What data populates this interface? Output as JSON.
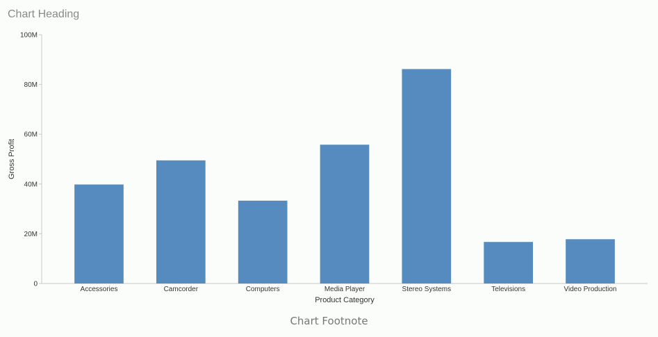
{
  "chart": {
    "heading": "Chart Heading",
    "footnote": "Chart Footnote"
  },
  "chart_data": {
    "type": "bar",
    "title": "Chart Heading",
    "xlabel": "Product Category",
    "ylabel": "Gross Profit",
    "categories": [
      "Accessories",
      "Camcorder",
      "Computers",
      "Media Player",
      "Stereo Systems",
      "Televisions",
      "Video Production"
    ],
    "values": [
      39800000,
      49500000,
      33300000,
      55800000,
      86200000,
      16700000,
      17800000
    ],
    "ylim": [
      0,
      100000000
    ],
    "yticks": [
      0,
      20000000,
      40000000,
      60000000,
      80000000,
      100000000
    ],
    "ytick_labels": [
      "0",
      "20M",
      "40M",
      "60M",
      "80M",
      "100M"
    ],
    "bar_color": "#558bbe",
    "grid": false,
    "legend": "none"
  }
}
